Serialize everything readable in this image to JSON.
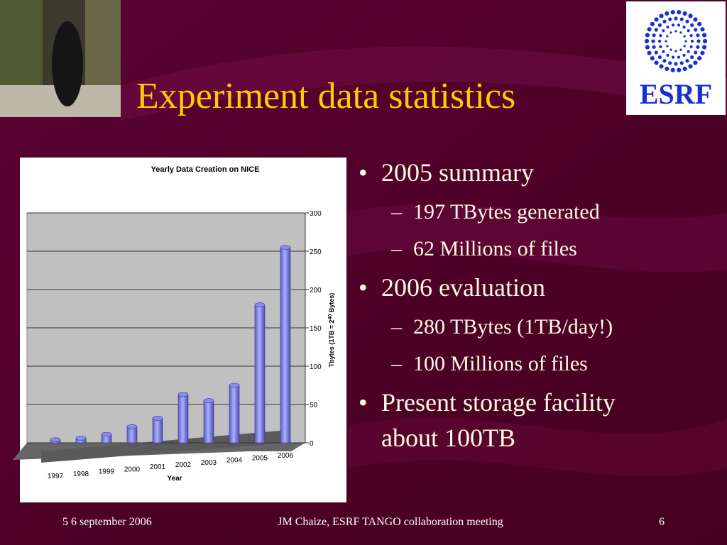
{
  "slide": {
    "title": "Experiment data statistics",
    "logo_text": "ESRF",
    "bullets": [
      {
        "lines": [
          "2005 summary"
        ],
        "sub": [
          "197 TBytes generated",
          "62 Millions of files"
        ]
      },
      {
        "lines": [
          "2006 evaluation"
        ],
        "sub": [
          "280 TBytes (1TB/day!)",
          "100 Millions of files"
        ]
      },
      {
        "lines": [
          "Present storage facility",
          "about 100TB"
        ],
        "sub": []
      }
    ],
    "footer": {
      "date": "5 6 september 2006",
      "center": "JM Chaize, ESRF  TANGO collaboration meeting",
      "page": "6"
    }
  },
  "chart_data": {
    "type": "bar",
    "title": "Yearly Data Creation on NICE",
    "x_label": "Year",
    "y_label": [
      "Tbytes (1TB = 2",
      "40",
      " Bytes)"
    ],
    "categories": [
      "1997",
      "1998",
      "1999",
      "2000",
      "2001",
      "2002",
      "2003",
      "2004",
      "2005",
      "2006"
    ],
    "values": [
      4,
      6,
      11,
      21,
      32,
      63,
      55,
      75,
      180,
      255
    ],
    "color": "#8c8cf0",
    "ylim": [
      0,
      300
    ],
    "yticks": [
      0,
      50,
      100,
      150,
      200,
      250,
      300
    ],
    "grid": true
  }
}
